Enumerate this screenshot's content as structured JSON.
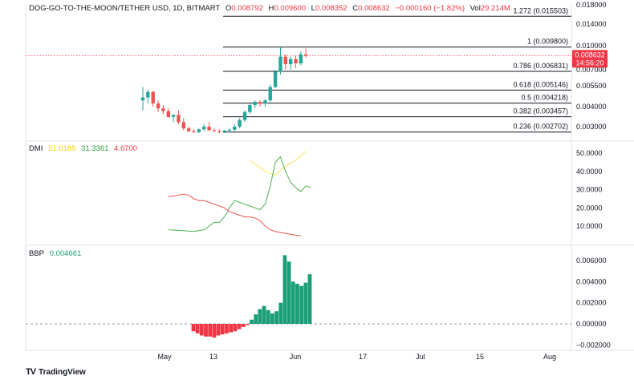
{
  "header": {
    "symbol": "DOG-GO-TO-THE-MOON/TETHER USD, 1D, BITMART",
    "open_label": "O",
    "open": "0.008792",
    "high_label": "H",
    "high": "0.009600",
    "low_label": "L",
    "low": "0.008352",
    "close_label": "C",
    "close": "0.008632",
    "change": "−0.000160 (−1.82%)",
    "vol_label": "Vol",
    "vol": "29.214M"
  },
  "price_tag": {
    "value": "0.008632",
    "countdown": "14:56:20"
  },
  "dmi": {
    "label": "DMI",
    "adx": "51.0185",
    "plus_di": "31.3361",
    "minus_di": "4.6700"
  },
  "bbp": {
    "label": "BBP",
    "value": "0.004661"
  },
  "branding": {
    "name": "TradingView"
  },
  "colors": {
    "up": "#26a69a",
    "down": "#ef5350",
    "adx": "#fbe45b",
    "plus_di": "#4caf50",
    "minus_di": "#ef5350",
    "bbp_up": "#1b9e77",
    "bbp_down": "#f23645"
  },
  "chart_data": [
    {
      "type": "candlestick",
      "title": "DOG-GO-TO-THE-MOON/TETHER USD, 1D, BITMART",
      "ylim": [
        0.0022,
        0.0185
      ],
      "y_ticks": [
        "0.018000",
        "0.014000",
        "0.010000",
        "0.007000",
        "0.005500",
        "0.004000",
        "0.003000"
      ],
      "x_ticks": [
        "May",
        "13",
        "Jun",
        "17",
        "Jul",
        "15",
        "Aug"
      ],
      "fibonacci": [
        {
          "label": "1.272 (0.015503)",
          "value": 0.015503
        },
        {
          "label": "1 (0.009800)",
          "value": 0.0098
        },
        {
          "label": "0.786 (0.006831)",
          "value": 0.006831
        },
        {
          "label": "0.618 (0.005146)",
          "value": 0.005146
        },
        {
          "label": "0.5 (0.004218)",
          "value": 0.004218
        },
        {
          "label": "0.382 (0.003457)",
          "value": 0.003457
        },
        {
          "label": "0.236 (0.002702)",
          "value": 0.002702
        }
      ],
      "last_price": 0.008632,
      "candles": [
        {
          "o": 0.0044,
          "h": 0.0054,
          "l": 0.0038,
          "c": 0.0046
        },
        {
          "o": 0.0046,
          "h": 0.0052,
          "l": 0.0042,
          "c": 0.005
        },
        {
          "o": 0.005,
          "h": 0.0051,
          "l": 0.004,
          "c": 0.0042
        },
        {
          "o": 0.0042,
          "h": 0.0044,
          "l": 0.0037,
          "c": 0.0039
        },
        {
          "o": 0.0039,
          "h": 0.0041,
          "l": 0.0036,
          "c": 0.00375
        },
        {
          "o": 0.00375,
          "h": 0.0039,
          "l": 0.0034,
          "c": 0.00345
        },
        {
          "o": 0.00345,
          "h": 0.0036,
          "l": 0.0032,
          "c": 0.00355
        },
        {
          "o": 0.00355,
          "h": 0.0038,
          "l": 0.0031,
          "c": 0.0032
        },
        {
          "o": 0.0032,
          "h": 0.0034,
          "l": 0.0028,
          "c": 0.0029
        },
        {
          "o": 0.0029,
          "h": 0.003,
          "l": 0.0027,
          "c": 0.00275
        },
        {
          "o": 0.00275,
          "h": 0.00285,
          "l": 0.00265,
          "c": 0.0027
        },
        {
          "o": 0.0027,
          "h": 0.0029,
          "l": 0.00265,
          "c": 0.00285
        },
        {
          "o": 0.00285,
          "h": 0.0031,
          "l": 0.00275,
          "c": 0.003
        },
        {
          "o": 0.003,
          "h": 0.0032,
          "l": 0.00275,
          "c": 0.0028
        },
        {
          "o": 0.0028,
          "h": 0.0029,
          "l": 0.0027,
          "c": 0.00275
        },
        {
          "o": 0.00275,
          "h": 0.00285,
          "l": 0.00265,
          "c": 0.00272
        },
        {
          "o": 0.00272,
          "h": 0.00282,
          "l": 0.00265,
          "c": 0.00278
        },
        {
          "o": 0.00278,
          "h": 0.0029,
          "l": 0.0027,
          "c": 0.00283
        },
        {
          "o": 0.00283,
          "h": 0.0031,
          "l": 0.00275,
          "c": 0.003
        },
        {
          "o": 0.003,
          "h": 0.0034,
          "l": 0.0029,
          "c": 0.0033
        },
        {
          "o": 0.0033,
          "h": 0.0038,
          "l": 0.0032,
          "c": 0.0037
        },
        {
          "o": 0.0037,
          "h": 0.0042,
          "l": 0.0036,
          "c": 0.0041
        },
        {
          "o": 0.0041,
          "h": 0.0044,
          "l": 0.0039,
          "c": 0.0043
        },
        {
          "o": 0.0043,
          "h": 0.0044,
          "l": 0.004,
          "c": 0.0042
        },
        {
          "o": 0.0042,
          "h": 0.0045,
          "l": 0.004,
          "c": 0.0044
        },
        {
          "o": 0.0044,
          "h": 0.0056,
          "l": 0.0043,
          "c": 0.0054
        },
        {
          "o": 0.0054,
          "h": 0.007,
          "l": 0.0053,
          "c": 0.0068
        },
        {
          "o": 0.0068,
          "h": 0.0098,
          "l": 0.0065,
          "c": 0.0085
        },
        {
          "o": 0.0085,
          "h": 0.0088,
          "l": 0.007,
          "c": 0.0076
        },
        {
          "o": 0.0076,
          "h": 0.0085,
          "l": 0.007,
          "c": 0.0082
        },
        {
          "o": 0.0082,
          "h": 0.0086,
          "l": 0.0072,
          "c": 0.0077
        },
        {
          "o": 0.0077,
          "h": 0.0092,
          "l": 0.0075,
          "c": 0.0088
        },
        {
          "o": 0.00879,
          "h": 0.0096,
          "l": 0.00835,
          "c": 0.00863
        }
      ]
    },
    {
      "type": "line",
      "title": "DMI",
      "ylim": [
        0,
        58
      ],
      "y_ticks": [
        50,
        40,
        30,
        20,
        10
      ],
      "series": [
        {
          "name": "ADX",
          "color": "#fbe45b",
          "start": 30,
          "values": [
            null,
            null,
            null,
            null,
            null,
            null,
            null,
            null,
            null,
            null,
            null,
            null,
            null,
            null,
            null,
            null,
            null,
            null,
            null,
            null,
            null,
            null,
            null,
            null,
            null,
            null,
            null,
            null,
            null,
            null,
            null,
            null,
            null
          ]
        },
        {
          "name": "+DI",
          "color": "#4caf50",
          "start": 5,
          "values": []
        },
        {
          "name": "−DI",
          "color": "#ef5350",
          "start": 5,
          "values": []
        }
      ],
      "adx": [
        {
          "i": 21,
          "v": 46
        },
        {
          "i": 24,
          "v": 40
        },
        {
          "i": 26,
          "v": 38
        },
        {
          "i": 28,
          "v": 43
        },
        {
          "i": 30,
          "v": 46
        },
        {
          "i": 32,
          "v": 51
        }
      ],
      "plus_di": [
        {
          "i": 5,
          "v": 8
        },
        {
          "i": 8,
          "v": 7.5
        },
        {
          "i": 10,
          "v": 7
        },
        {
          "i": 12,
          "v": 8
        },
        {
          "i": 13,
          "v": 10
        },
        {
          "i": 14,
          "v": 12
        },
        {
          "i": 15,
          "v": 12
        },
        {
          "i": 16,
          "v": 15
        },
        {
          "i": 17,
          "v": 20
        },
        {
          "i": 18,
          "v": 24
        },
        {
          "i": 19,
          "v": 23
        },
        {
          "i": 20,
          "v": 22
        },
        {
          "i": 21,
          "v": 21
        },
        {
          "i": 22,
          "v": 20
        },
        {
          "i": 23,
          "v": 19
        },
        {
          "i": 24,
          "v": 22
        },
        {
          "i": 25,
          "v": 32
        },
        {
          "i": 26,
          "v": 45
        },
        {
          "i": 27,
          "v": 48
        },
        {
          "i": 28,
          "v": 40
        },
        {
          "i": 29,
          "v": 34
        },
        {
          "i": 30,
          "v": 31
        },
        {
          "i": 31,
          "v": 29
        },
        {
          "i": 32,
          "v": 32
        },
        {
          "i": 33,
          "v": 31
        }
      ],
      "minus_di": [
        {
          "i": 5,
          "v": 26
        },
        {
          "i": 6,
          "v": 26.5
        },
        {
          "i": 7,
          "v": 27
        },
        {
          "i": 8,
          "v": 27.5
        },
        {
          "i": 9,
          "v": 27
        },
        {
          "i": 10,
          "v": 25
        },
        {
          "i": 11,
          "v": 24
        },
        {
          "i": 12,
          "v": 24
        },
        {
          "i": 13,
          "v": 23
        },
        {
          "i": 14,
          "v": 22
        },
        {
          "i": 15,
          "v": 21
        },
        {
          "i": 16,
          "v": 20
        },
        {
          "i": 17,
          "v": 18
        },
        {
          "i": 18,
          "v": 17
        },
        {
          "i": 19,
          "v": 16
        },
        {
          "i": 20,
          "v": 15
        },
        {
          "i": 21,
          "v": 15
        },
        {
          "i": 22,
          "v": 14.5
        },
        {
          "i": 23,
          "v": 13
        },
        {
          "i": 24,
          "v": 10
        },
        {
          "i": 25,
          "v": 8
        },
        {
          "i": 26,
          "v": 7
        },
        {
          "i": 27,
          "v": 6.5
        },
        {
          "i": 28,
          "v": 6
        },
        {
          "i": 29,
          "v": 5.5
        },
        {
          "i": 30,
          "v": 5
        },
        {
          "i": 31,
          "v": 4.7
        }
      ]
    },
    {
      "type": "bar",
      "title": "BBP",
      "ylim": [
        -0.0025,
        0.0068
      ],
      "y_ticks": [
        0.006,
        0.004,
        0.002,
        0.0,
        -0.002
      ],
      "y_tick_labels": [
        "0.006000",
        "0.004000",
        "0.002000",
        "0.000000",
        "−0.002000"
      ],
      "values": [
        -0.0007,
        -0.0009,
        -0.0011,
        -0.0012,
        -0.0012,
        -0.0013,
        -0.0011,
        -0.001,
        -0.0009,
        -0.0008,
        -0.0007,
        -0.0005,
        -0.0003,
        -0.0001,
        0.0004,
        0.0009,
        0.0014,
        0.0017,
        0.0013,
        0.001,
        0.0012,
        0.002,
        0.0065,
        0.0059,
        0.004,
        0.0038,
        0.0036,
        0.0039,
        0.0047
      ],
      "start": 11
    }
  ]
}
